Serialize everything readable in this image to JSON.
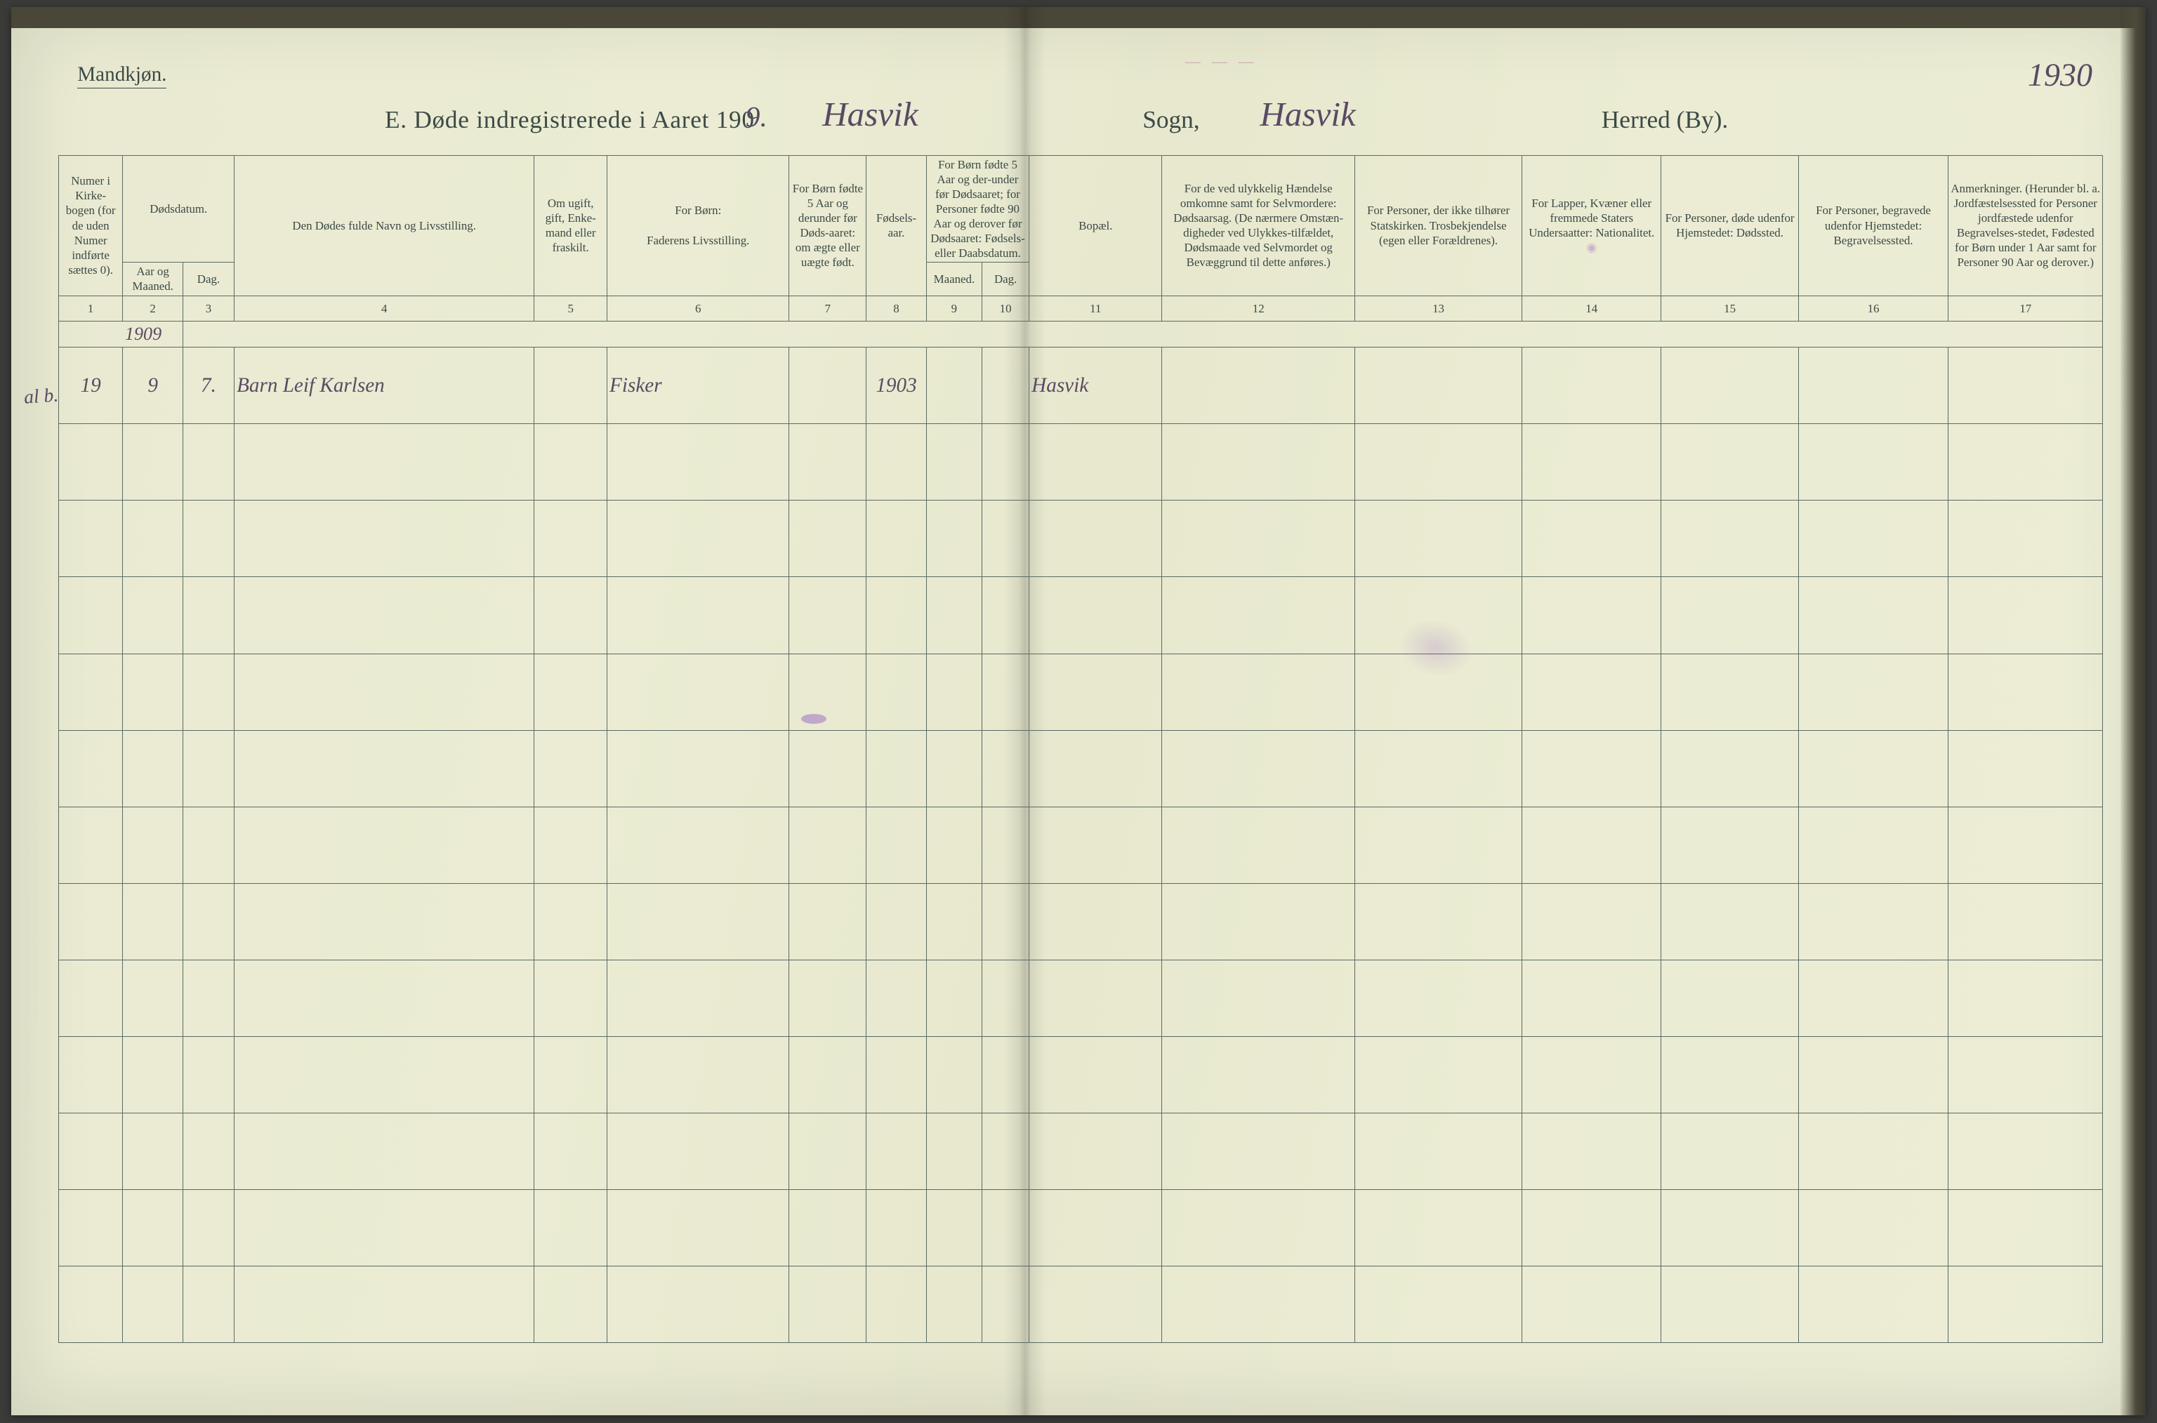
{
  "page": {
    "gender_label": "Mandkjøn.",
    "title_prefix": "E.   Døde indregistrerede i Aaret 190",
    "year_suffix_hand": "9.",
    "sogn_hand": "Hasvik",
    "sogn_label": "Sogn,",
    "herred_hand": "Hasvik",
    "herred_label": "Herred (By).",
    "page_number_hand": "1930",
    "margin_note": "al b.",
    "top_smudge_text": "— — —"
  },
  "colors": {
    "paper": "#e9ead1",
    "ink_printed": "#3c4a46",
    "ink_hand": "#5a4a63",
    "rule": "#5a6a63",
    "stamp": "rgba(127,71,180,0.35)"
  },
  "headers": {
    "c1": "Numer i Kirke-bogen (for de uden Numer indførte sættes 0).",
    "c2_group": "Dødsdatum.",
    "c2": "Aar og Maaned.",
    "c3": "Dag.",
    "c4": "Den Dødes fulde Navn og Livsstilling.",
    "c5": "Om ugift, gift, Enke-mand eller fraskilt.",
    "c6_top": "For Børn:",
    "c6": "Faderens Livsstilling.",
    "c7": "For Børn fødte 5 Aar og derunder før Døds-aaret: om ægte eller uægte født.",
    "c8": "Fødsels-aar.",
    "c9_group": "For Børn fødte 5 Aar og der-under før Dødsaaret; for Personer fødte 90 Aar og derover før Dødsaaret: Fødsels- eller Daabsdatum.",
    "c9": "Maaned.",
    "c10": "Dag.",
    "c11": "Bopæl.",
    "c12": "For de ved ulykkelig Hændelse omkomne samt for Selvmordere: Dødsaarsag. (De nærmere Omstæn-digheder ved Ulykkes-tilfældet, Dødsmaade ved Selvmordet og Bevæggrund til dette anføres.)",
    "c13": "For Personer, der ikke tilhører Statskirken. Trosbekjendelse (egen eller Forældrenes).",
    "c14": "For Lapper, Kvæner eller fremmede Staters Undersaatter: Nationalitet.",
    "c15": "For Personer, døde udenfor Hjemstedet: Dødssted.",
    "c16": "For Personer, begravede udenfor Hjemstedet: Begravelsessted.",
    "c17": "Anmerkninger. (Herunder bl. a. Jordfæstelsessted for Personer jordfæstede udenfor Begravelses-stedet, Fødested for Børn under 1 Aar samt for Personer 90 Aar og derover.)"
  },
  "col_numbers": [
    "1",
    "2",
    "3",
    "4",
    "5",
    "6",
    "7",
    "8",
    "9",
    "10",
    "11",
    "12",
    "13",
    "14",
    "15",
    "16",
    "17"
  ],
  "rows": [
    {
      "year_above": "1909",
      "c1": "19",
      "c2": "9",
      "c3": "7.",
      "c4": "Barn Leif Karlsen",
      "c5": "",
      "c6": "Fisker",
      "c7": "",
      "c8": "1903",
      "c9": "",
      "c10": "",
      "c11": "Hasvik",
      "c12": "",
      "c13": "",
      "c14": "",
      "c15": "",
      "c16": "",
      "c17": ""
    }
  ],
  "blank_row_count": 12
}
